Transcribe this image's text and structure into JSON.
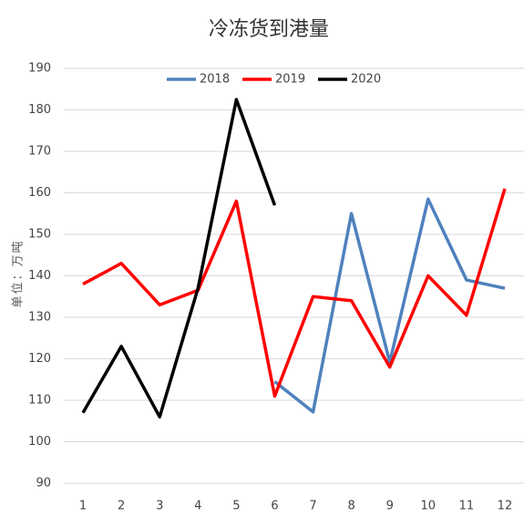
{
  "chart_data": {
    "type": "line",
    "title": "冷冻货到港量",
    "y_label": "单位：万吨",
    "categories": [
      "1",
      "2",
      "3",
      "4",
      "5",
      "6",
      "7",
      "8",
      "9",
      "10",
      "11",
      "12"
    ],
    "series": [
      {
        "name": "2018",
        "color": "#4f81bd",
        "values": [
          null,
          null,
          null,
          null,
          null,
          114.5,
          107.2,
          155,
          119.2,
          158.5,
          139,
          137
        ]
      },
      {
        "name": "2019",
        "color": "#ff0000",
        "values": [
          138,
          143,
          133,
          136.5,
          158,
          111,
          135,
          134,
          118,
          140,
          130.5,
          161
        ]
      },
      {
        "name": "2020",
        "color": "#000000",
        "values": [
          107,
          123,
          106,
          137,
          182.5,
          157,
          null,
          null,
          null,
          null,
          null,
          null
        ]
      }
    ],
    "ylim": [
      90,
      190
    ],
    "yticks": [
      90,
      100,
      110,
      120,
      130,
      140,
      150,
      160,
      170,
      180,
      190
    ],
    "grid": true,
    "legend": "top"
  }
}
